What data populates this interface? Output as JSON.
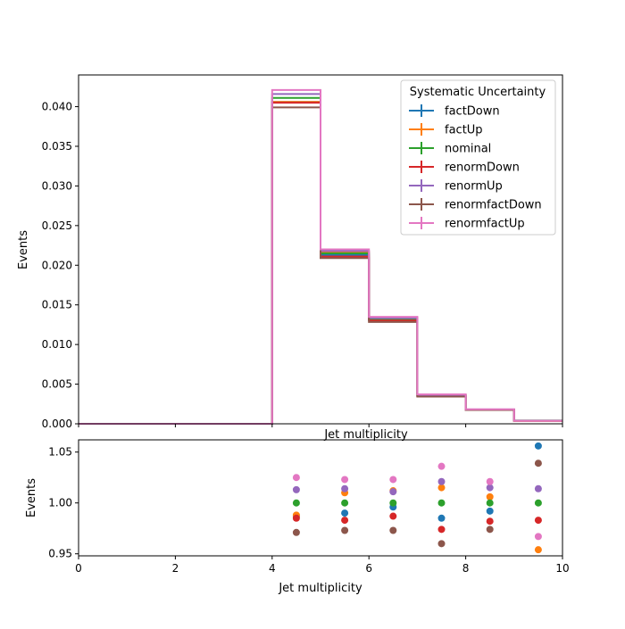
{
  "colors": {
    "factDown": "#1f77b4",
    "factUp": "#ff7f0e",
    "nominal": "#2ca02c",
    "renormDown": "#d62728",
    "renormUp": "#9467bd",
    "renormfactDown": "#8c564b",
    "renormfactUp": "#e377c2"
  },
  "chart_data": [
    {
      "type": "line",
      "style": "step-histogram",
      "xlabel": "Jet multiplicity",
      "ylabel": "Events",
      "xlim": [
        0,
        10
      ],
      "ylim": [
        0,
        0.044
      ],
      "xticks": [
        0,
        2,
        4,
        6,
        8,
        10
      ],
      "yticks": [
        0.0,
        0.005,
        0.01,
        0.015,
        0.02,
        0.025,
        0.03,
        0.035,
        0.04
      ],
      "ytick_labels": [
        "0.000",
        "0.005",
        "0.010",
        "0.015",
        "0.020",
        "0.025",
        "0.030",
        "0.035",
        "0.040"
      ],
      "bin_edges": [
        0,
        1,
        2,
        3,
        4,
        5,
        6,
        7,
        8,
        9,
        10
      ],
      "legend": {
        "title": "Systematic Uncertainty",
        "placement": "top-right"
      },
      "grid": false,
      "series": [
        {
          "name": "factDown",
          "values": [
            0,
            0,
            0,
            0,
            0.0406,
            0.0213,
            0.01315,
            0.00354,
            0.00178,
            0.000402
          ]
        },
        {
          "name": "factUp",
          "values": [
            0,
            0,
            0,
            0,
            0.0406,
            0.0217,
            0.0134,
            0.00364,
            0.0018,
            0.000367
          ]
        },
        {
          "name": "nominal",
          "values": [
            0,
            0,
            0,
            0,
            0.0411,
            0.0215,
            0.0132,
            0.00358,
            0.00179,
            0.000385
          ]
        },
        {
          "name": "renormDown",
          "values": [
            0,
            0,
            0,
            0,
            0.0405,
            0.0211,
            0.01303,
            0.00349,
            0.00176,
            0.000378
          ]
        },
        {
          "name": "renormUp",
          "values": [
            0,
            0,
            0,
            0,
            0.0416,
            0.0218,
            0.01334,
            0.00365,
            0.00181,
            0.00039
          ]
        },
        {
          "name": "renormfactDown",
          "values": [
            0,
            0,
            0,
            0,
            0.0399,
            0.0209,
            0.01284,
            0.00343,
            0.00174,
            0.0004
          ]
        },
        {
          "name": "renormfactUp",
          "values": [
            0,
            0,
            0,
            0,
            0.0421,
            0.022,
            0.01349,
            0.00371,
            0.00183,
            0.000372
          ]
        }
      ]
    },
    {
      "type": "scatter",
      "xlabel": "Jet multiplicity",
      "ylabel": "Events",
      "xlim": [
        0,
        10
      ],
      "ylim": [
        0.948,
        1.062
      ],
      "xticks": [
        0,
        2,
        4,
        6,
        8,
        10
      ],
      "yticks": [
        0.95,
        1.0,
        1.05
      ],
      "ytick_labels": [
        "0.95",
        "1.00",
        "1.05"
      ],
      "grid": false,
      "x": [
        4.5,
        5.5,
        6.5,
        7.5,
        8.5,
        9.5
      ],
      "series": [
        {
          "name": "factDown",
          "values": [
            0.987,
            0.99,
            0.996,
            0.985,
            0.992,
            1.056
          ]
        },
        {
          "name": "factUp",
          "values": [
            0.988,
            1.01,
            1.012,
            1.015,
            1.006,
            0.954
          ]
        },
        {
          "name": "nominal",
          "values": [
            1.0,
            1.0,
            1.0,
            1.0,
            1.0,
            1.0
          ]
        },
        {
          "name": "renormDown",
          "values": [
            0.985,
            0.983,
            0.987,
            0.974,
            0.982,
            0.983
          ]
        },
        {
          "name": "renormUp",
          "values": [
            1.013,
            1.014,
            1.011,
            1.021,
            1.015,
            1.014
          ]
        },
        {
          "name": "renormfactDown",
          "values": [
            0.971,
            0.973,
            0.973,
            0.96,
            0.974,
            1.039
          ]
        },
        {
          "name": "renormfactUp",
          "values": [
            1.025,
            1.023,
            1.023,
            1.036,
            1.021,
            0.967
          ]
        }
      ]
    }
  ]
}
